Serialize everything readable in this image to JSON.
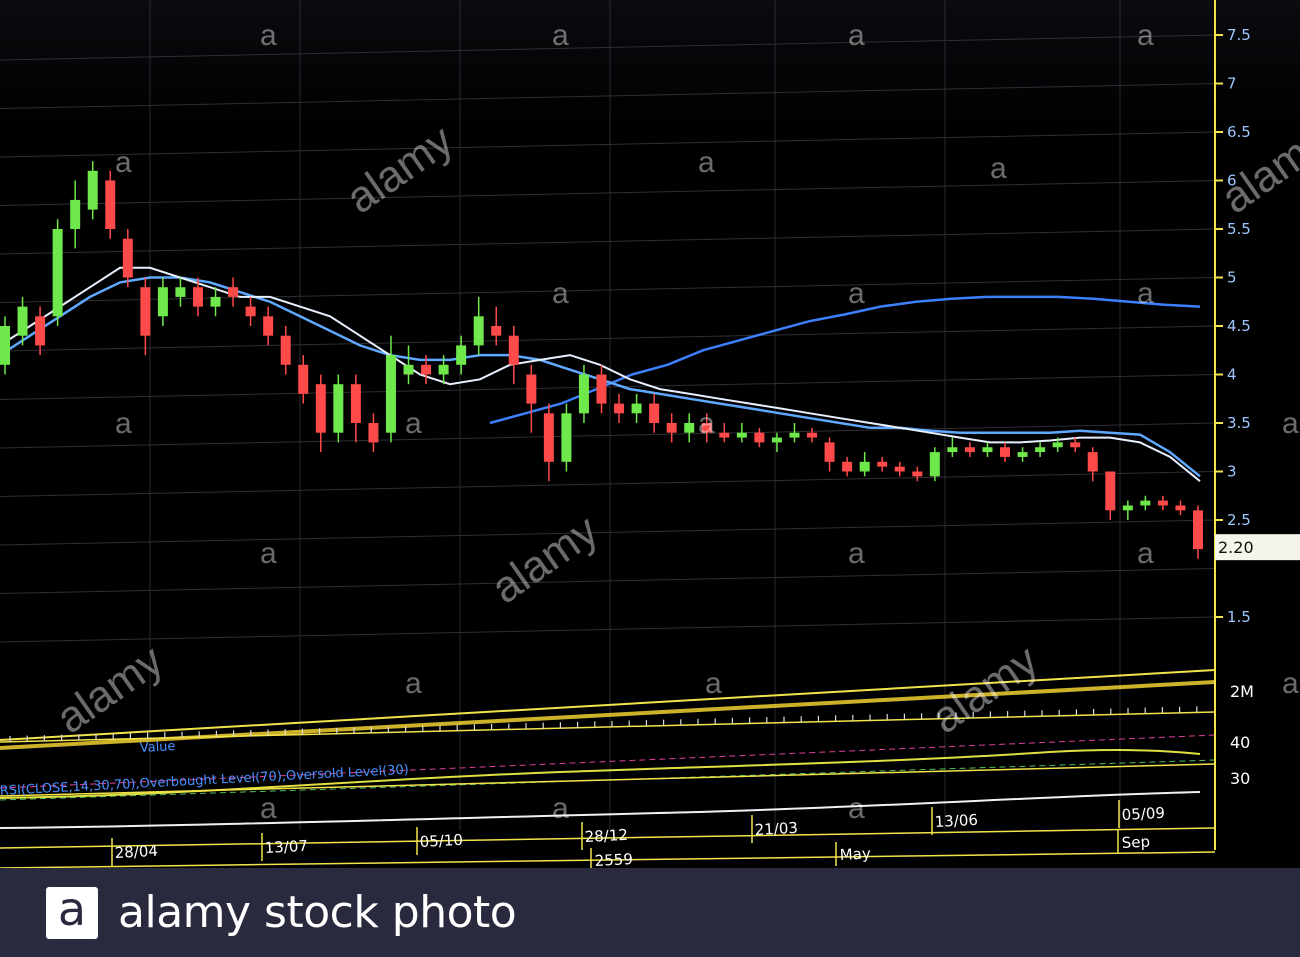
{
  "chart_data": {
    "type": "candlestick",
    "y_ticks": [
      "7.5",
      "7",
      "6.5",
      "6",
      "5.5",
      "5",
      "4.5",
      "4",
      "3.5",
      "3",
      "2.5",
      "1.5"
    ],
    "last_price_label": "2.20",
    "volume_tick": "2M",
    "rsi_ticks": [
      "40",
      "30"
    ],
    "date_ticks": [
      "28/12",
      "21/03",
      "13/06",
      "05/09",
      "05/10",
      "13/07",
      "28/04"
    ],
    "period_ticks": [
      "2559",
      "May",
      "Sep"
    ],
    "legend_rsi": "RSI(CLOSE,14,30,70),Overbought Level(70),Oversold Level(30)",
    "legend_value": "Value",
    "candles": [
      [
        4.1,
        4.5,
        4.0,
        4.6,
        "up"
      ],
      [
        4.4,
        4.7,
        4.3,
        4.8,
        "up"
      ],
      [
        4.3,
        4.6,
        4.2,
        4.7,
        "down"
      ],
      [
        4.6,
        5.5,
        4.5,
        5.6,
        "up"
      ],
      [
        5.5,
        5.8,
        5.3,
        6.0,
        "up"
      ],
      [
        5.7,
        6.1,
        5.6,
        6.2,
        "up"
      ],
      [
        6.0,
        5.5,
        5.4,
        6.1,
        "down"
      ],
      [
        5.4,
        5.0,
        4.9,
        5.5,
        "down"
      ],
      [
        4.9,
        4.4,
        4.2,
        5.0,
        "down"
      ],
      [
        4.6,
        4.9,
        4.5,
        5.0,
        "up"
      ],
      [
        4.8,
        4.9,
        4.7,
        5.0,
        "up"
      ],
      [
        4.9,
        4.7,
        4.6,
        5.0,
        "down"
      ],
      [
        4.7,
        4.8,
        4.6,
        4.9,
        "up"
      ],
      [
        4.9,
        4.8,
        4.7,
        5.0,
        "down"
      ],
      [
        4.7,
        4.6,
        4.5,
        4.8,
        "down"
      ],
      [
        4.6,
        4.4,
        4.3,
        4.7,
        "down"
      ],
      [
        4.4,
        4.1,
        4.0,
        4.5,
        "down"
      ],
      [
        4.1,
        3.8,
        3.7,
        4.2,
        "down"
      ],
      [
        3.9,
        3.4,
        3.2,
        4.0,
        "down"
      ],
      [
        3.4,
        3.9,
        3.3,
        4.0,
        "up"
      ],
      [
        3.9,
        3.5,
        3.3,
        4.0,
        "down"
      ],
      [
        3.5,
        3.3,
        3.2,
        3.6,
        "down"
      ],
      [
        3.4,
        4.2,
        3.3,
        4.4,
        "up"
      ],
      [
        4.0,
        4.1,
        3.9,
        4.3,
        "up"
      ],
      [
        4.1,
        4.0,
        3.9,
        4.2,
        "down"
      ],
      [
        4.0,
        4.1,
        3.9,
        4.2,
        "up"
      ],
      [
        4.1,
        4.3,
        4.0,
        4.4,
        "up"
      ],
      [
        4.3,
        4.6,
        4.2,
        4.8,
        "up"
      ],
      [
        4.5,
        4.4,
        4.3,
        4.7,
        "down"
      ],
      [
        4.4,
        4.1,
        3.9,
        4.5,
        "down"
      ],
      [
        4.0,
        3.7,
        3.4,
        4.1,
        "down"
      ],
      [
        3.6,
        3.1,
        2.9,
        3.7,
        "down"
      ],
      [
        3.1,
        3.6,
        3.0,
        3.7,
        "up"
      ],
      [
        3.6,
        4.0,
        3.5,
        4.1,
        "up"
      ],
      [
        4.0,
        3.7,
        3.6,
        4.1,
        "down"
      ],
      [
        3.7,
        3.6,
        3.5,
        3.8,
        "down"
      ],
      [
        3.6,
        3.7,
        3.5,
        3.8,
        "up"
      ],
      [
        3.7,
        3.5,
        3.4,
        3.8,
        "down"
      ],
      [
        3.5,
        3.4,
        3.3,
        3.6,
        "down"
      ],
      [
        3.4,
        3.5,
        3.3,
        3.6,
        "up"
      ],
      [
        3.5,
        3.4,
        3.3,
        3.6,
        "down"
      ],
      [
        3.4,
        3.35,
        3.3,
        3.5,
        "down"
      ],
      [
        3.35,
        3.4,
        3.3,
        3.5,
        "up"
      ],
      [
        3.4,
        3.3,
        3.25,
        3.45,
        "down"
      ],
      [
        3.3,
        3.35,
        3.2,
        3.4,
        "up"
      ],
      [
        3.35,
        3.4,
        3.3,
        3.5,
        "up"
      ],
      [
        3.4,
        3.35,
        3.3,
        3.45,
        "down"
      ],
      [
        3.3,
        3.1,
        3.0,
        3.35,
        "down"
      ],
      [
        3.1,
        3.0,
        2.95,
        3.15,
        "down"
      ],
      [
        3.0,
        3.1,
        2.95,
        3.2,
        "up"
      ],
      [
        3.1,
        3.05,
        3.0,
        3.15,
        "down"
      ],
      [
        3.05,
        3.0,
        2.95,
        3.1,
        "down"
      ],
      [
        3.0,
        2.95,
        2.9,
        3.05,
        "down"
      ],
      [
        2.95,
        3.2,
        2.9,
        3.25,
        "up"
      ],
      [
        3.2,
        3.25,
        3.15,
        3.35,
        "up"
      ],
      [
        3.25,
        3.2,
        3.15,
        3.3,
        "down"
      ],
      [
        3.2,
        3.25,
        3.15,
        3.3,
        "up"
      ],
      [
        3.25,
        3.15,
        3.1,
        3.3,
        "down"
      ],
      [
        3.15,
        3.2,
        3.1,
        3.25,
        "up"
      ],
      [
        3.2,
        3.25,
        3.15,
        3.3,
        "up"
      ],
      [
        3.25,
        3.3,
        3.2,
        3.35,
        "up"
      ],
      [
        3.3,
        3.25,
        3.2,
        3.35,
        "down"
      ],
      [
        3.2,
        3.0,
        2.9,
        3.25,
        "down"
      ],
      [
        3.0,
        2.6,
        2.5,
        3.0,
        "down"
      ],
      [
        2.6,
        2.65,
        2.5,
        2.7,
        "up"
      ],
      [
        2.65,
        2.7,
        2.6,
        2.75,
        "up"
      ],
      [
        2.7,
        2.65,
        2.6,
        2.75,
        "down"
      ],
      [
        2.65,
        2.6,
        2.55,
        2.7,
        "down"
      ],
      [
        2.6,
        2.2,
        2.1,
        2.65,
        "down"
      ]
    ],
    "ma_fast": [
      4.3,
      4.5,
      4.7,
      4.9,
      5.1,
      5.1,
      5.0,
      4.9,
      4.8,
      4.8,
      4.7,
      4.6,
      4.4,
      4.2,
      4.0,
      3.9,
      3.95,
      4.1,
      4.15,
      4.2,
      4.1,
      3.95,
      3.85,
      3.8,
      3.75,
      3.7,
      3.65,
      3.6,
      3.55,
      3.5,
      3.45,
      3.4,
      3.35,
      3.3,
      3.3,
      3.32,
      3.35,
      3.35,
      3.3,
      3.15,
      2.9
    ],
    "ma_mid": [
      4.2,
      4.4,
      4.6,
      4.8,
      4.95,
      5.0,
      5.0,
      4.95,
      4.85,
      4.75,
      4.6,
      4.45,
      4.3,
      4.2,
      4.15,
      4.15,
      4.2,
      4.2,
      4.15,
      4.05,
      3.95,
      3.85,
      3.8,
      3.75,
      3.7,
      3.65,
      3.6,
      3.55,
      3.5,
      3.45,
      3.45,
      3.42,
      3.4,
      3.4,
      3.4,
      3.4,
      3.42,
      3.4,
      3.38,
      3.2,
      2.95
    ],
    "ma_slow": [
      3.5,
      3.6,
      3.7,
      3.85,
      4.0,
      4.1,
      4.25,
      4.35,
      4.45,
      4.55,
      4.62,
      4.7,
      4.75,
      4.78,
      4.8,
      4.8,
      4.8,
      4.78,
      4.75,
      4.72,
      4.7
    ]
  },
  "footer": {
    "logo_glyph": "a",
    "brand_text": "alamy stock photo"
  },
  "watermarks": {
    "word": "alamy",
    "glyph": "a"
  },
  "colors": {
    "up": "#6ee84a",
    "down": "#ff4a4a",
    "axis": "#f2e34a",
    "ma_fast": "#e8f0ff",
    "ma_mid": "#5fa8ff",
    "ma_slow": "#3c7fff"
  }
}
